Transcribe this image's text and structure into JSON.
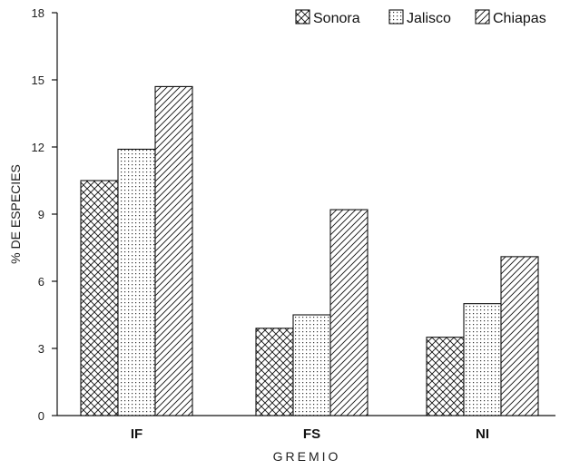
{
  "chart_data": {
    "type": "bar",
    "categories": [
      "IF",
      "FS",
      "NI"
    ],
    "series": [
      {
        "name": "Sonora",
        "values": [
          10.5,
          3.9,
          3.5
        ],
        "pattern": "crosshatch"
      },
      {
        "name": "Jalisco",
        "values": [
          11.9,
          4.5,
          5.0
        ],
        "pattern": "dots"
      },
      {
        "name": "Chiapas",
        "values": [
          14.7,
          9.2,
          7.1
        ],
        "pattern": "diagonal"
      }
    ],
    "xlabel": "GREMIO",
    "ylabel": "% DE ESPECIES",
    "ylim": [
      0,
      18
    ],
    "yticks": [
      0,
      3,
      6,
      9,
      12,
      15,
      18
    ],
    "legend_position": "top-right",
    "grid": false,
    "colors": {
      "stroke": "#111111",
      "fill": "#ffffff"
    }
  }
}
